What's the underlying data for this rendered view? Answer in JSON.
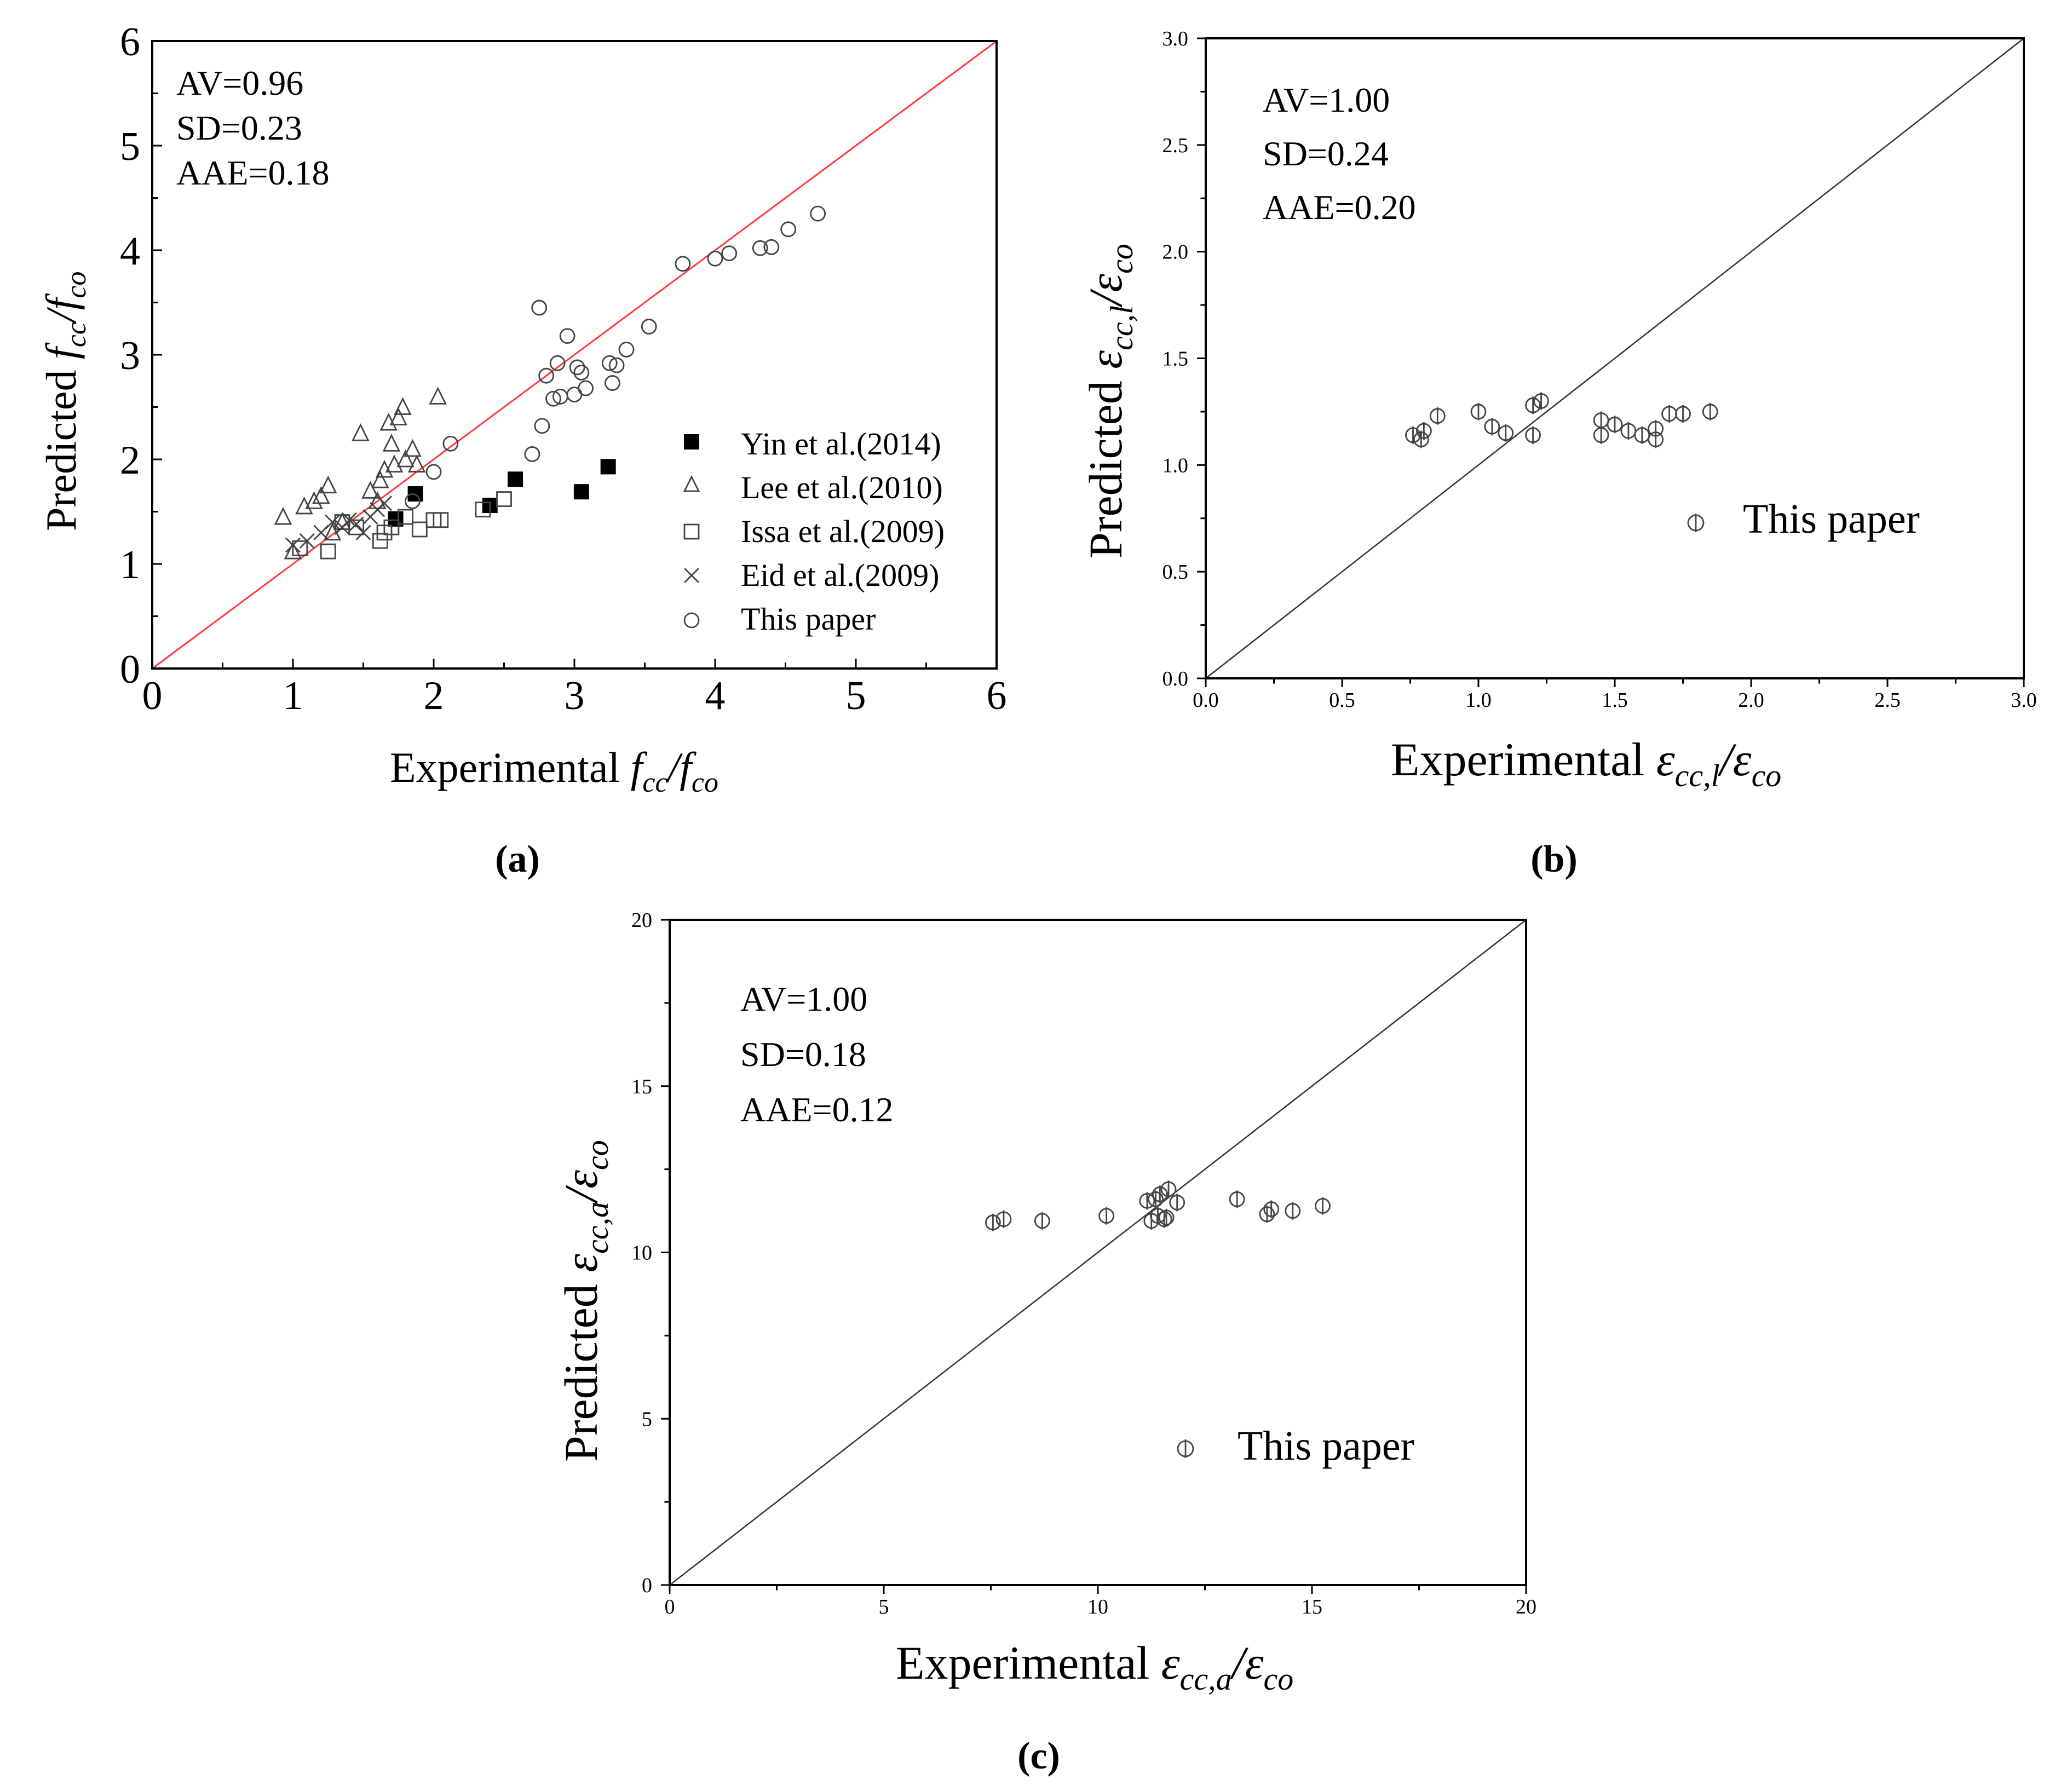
{
  "chart_data": [
    {
      "panel": "(a)",
      "type": "scatter",
      "xlim": [
        0,
        6
      ],
      "ylim": [
        0,
        6
      ],
      "xticks": [
        "0",
        "1",
        "2",
        "3",
        "4",
        "5",
        "6"
      ],
      "yticks": [
        "0",
        "1",
        "2",
        "3",
        "4",
        "5",
        "6"
      ],
      "xlabel": {
        "main": "Experimental ",
        "f": "f",
        "sub1": "cc",
        "sep": "/",
        "f2": "f",
        "sub2": "co"
      },
      "ylabel": {
        "main": "Predicted ",
        "f": "f",
        "sub1": "cc",
        "sep": "/",
        "f2": "f",
        "sub2": "co"
      },
      "stats": [
        "AV=0.96",
        "SD=0.23",
        "AAE=0.18"
      ],
      "reference_line": {
        "x": [
          0,
          6
        ],
        "y": [
          0,
          6
        ],
        "color": "#ff3b3b"
      },
      "series": [
        {
          "name": "Yin et al.(2014)",
          "marker": "filled-square",
          "x": [
            1.73,
            1.87,
            2.4,
            2.58,
            3.05,
            3.24
          ],
          "y": [
            1.43,
            1.67,
            1.56,
            1.81,
            1.69,
            1.93
          ]
        },
        {
          "name": "Lee et al.(2010)",
          "marker": "open-triangle",
          "x": [
            0.93,
            1.0,
            1.08,
            1.15,
            1.2,
            1.25,
            1.28,
            1.35,
            1.48,
            1.55,
            1.6,
            1.62,
            1.65,
            1.68,
            1.7,
            1.72,
            1.75,
            1.78,
            1.8,
            1.85,
            1.88,
            2.03
          ],
          "y": [
            1.45,
            1.12,
            1.55,
            1.6,
            1.65,
            1.75,
            1.3,
            1.4,
            2.25,
            1.7,
            1.6,
            1.8,
            1.9,
            2.35,
            2.15,
            1.95,
            2.4,
            2.5,
            2.0,
            2.1,
            1.95,
            2.6
          ]
        },
        {
          "name": "Issa et al.(2009)",
          "marker": "open-square",
          "x": [
            1.05,
            1.25,
            1.35,
            1.45,
            1.62,
            1.65,
            1.7,
            1.8,
            1.9,
            2.0,
            2.05,
            2.35,
            2.5
          ],
          "y": [
            1.15,
            1.12,
            1.4,
            1.35,
            1.22,
            1.3,
            1.35,
            1.45,
            1.33,
            1.42,
            1.42,
            1.52,
            1.62
          ]
        },
        {
          "name": "Eid et al.(2009)",
          "marker": "cross",
          "x": [
            1.0,
            1.1,
            1.2,
            1.28,
            1.35,
            1.4,
            1.45,
            1.5,
            1.55,
            1.6,
            1.65
          ],
          "y": [
            1.18,
            1.22,
            1.3,
            1.4,
            1.35,
            1.42,
            1.38,
            1.3,
            1.45,
            1.52,
            1.58
          ]
        },
        {
          "name": "This paper",
          "marker": "open-circle",
          "x": [
            1.85,
            2.0,
            2.12,
            2.7,
            2.75,
            2.77,
            2.8,
            2.85,
            2.88,
            2.9,
            2.95,
            3.0,
            3.02,
            3.05,
            3.08,
            3.25,
            3.27,
            3.3,
            3.37,
            3.53,
            3.77,
            4.0,
            4.1,
            4.32,
            4.4,
            4.52,
            4.73
          ],
          "y": [
            1.6,
            1.88,
            2.15,
            2.05,
            3.45,
            2.32,
            2.8,
            2.58,
            2.92,
            2.6,
            3.18,
            2.62,
            2.88,
            2.83,
            2.68,
            2.92,
            2.73,
            2.9,
            3.05,
            3.27,
            3.87,
            3.92,
            3.97,
            4.02,
            4.03,
            4.2,
            4.35
          ]
        }
      ]
    },
    {
      "panel": "(b)",
      "type": "scatter",
      "xlim": [
        0,
        3
      ],
      "ylim": [
        0,
        3
      ],
      "xticks": [
        "0.0",
        "0.5",
        "1.0",
        "1.5",
        "2.0",
        "2.5",
        "3.0"
      ],
      "yticks": [
        "0.0",
        "0.5",
        "1.0",
        "1.5",
        "2.0",
        "2.5",
        "3.0"
      ],
      "xlabel": {
        "main": "Experimental ",
        "e1": "ε",
        "sub1": "cc,l",
        "sep": "/",
        "e2": "ε",
        "sub2": "co"
      },
      "ylabel": {
        "main": "Predicted ",
        "e1": "ε",
        "sub1": "cc,l",
        "sep": "/",
        "e2": "ε",
        "sub2": "co"
      },
      "stats": [
        "AV=1.00",
        "SD=0.24",
        "AAE=0.20"
      ],
      "reference_line": {
        "x": [
          0,
          3
        ],
        "y": [
          0,
          3
        ],
        "color": "#333333"
      },
      "series": [
        {
          "name": "This paper",
          "marker": "circle-slash",
          "x": [
            0.76,
            0.79,
            0.8,
            0.85,
            1.0,
            1.05,
            1.1,
            1.2,
            1.2,
            1.23,
            1.45,
            1.45,
            1.5,
            1.55,
            1.6,
            1.65,
            1.65,
            1.7,
            1.75,
            1.85
          ],
          "y": [
            1.14,
            1.12,
            1.16,
            1.23,
            1.25,
            1.18,
            1.15,
            1.28,
            1.14,
            1.3,
            1.21,
            1.14,
            1.19,
            1.16,
            1.14,
            1.17,
            1.12,
            1.24,
            1.24,
            1.25
          ]
        }
      ]
    },
    {
      "panel": "(c)",
      "type": "scatter",
      "xlim": [
        0,
        20
      ],
      "ylim": [
        0,
        20
      ],
      "xticks": [
        "0",
        "5",
        "10",
        "15",
        "20"
      ],
      "yticks": [
        "0",
        "5",
        "10",
        "15",
        "20"
      ],
      "xlabel": {
        "main": "Experimental ",
        "e1": "ε",
        "sub1": "cc,a",
        "sep": "/",
        "e2": "ε",
        "sub2": "co"
      },
      "ylabel": {
        "main": "Predicted ",
        "e1": "ε",
        "sub1": "cc,a",
        "sep": "/",
        "e2": "ε",
        "sub2": "co"
      },
      "stats": [
        "AV=1.00",
        "SD=0.18",
        "AAE=0.12"
      ],
      "reference_line": {
        "x": [
          0,
          20
        ],
        "y": [
          0,
          20
        ],
        "color": "#333333"
      },
      "series": [
        {
          "name": "This paper",
          "marker": "circle-slash",
          "x": [
            7.55,
            7.8,
            8.7,
            10.2,
            11.15,
            11.25,
            11.35,
            11.4,
            11.45,
            11.55,
            11.6,
            11.65,
            11.85,
            13.25,
            13.95,
            14.05,
            14.55,
            15.25
          ],
          "y": [
            10.9,
            11.0,
            10.95,
            11.1,
            11.55,
            10.95,
            11.6,
            11.1,
            11.75,
            11.0,
            11.05,
            11.9,
            11.5,
            11.6,
            11.15,
            11.3,
            11.25,
            11.4
          ]
        }
      ]
    }
  ],
  "panel_labels": [
    "(a)",
    "(b)",
    "(c)"
  ]
}
